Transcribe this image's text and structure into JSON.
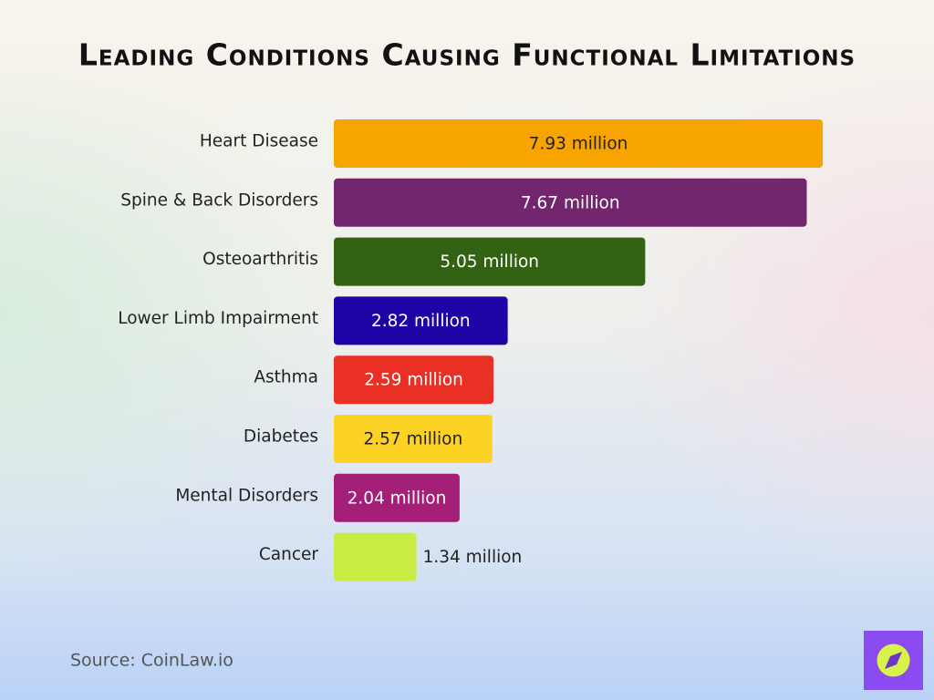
{
  "chart_data": {
    "type": "bar",
    "orientation": "horizontal",
    "title": "Leading Conditions Causing Functional Limitations",
    "categories": [
      "Heart Disease",
      "Spine & Back Disorders",
      "Osteoarthritis",
      "Lower Limb Impairment",
      "Asthma",
      "Diabetes",
      "Mental Disorders",
      "Cancer"
    ],
    "values": [
      7.93,
      7.67,
      5.05,
      2.82,
      2.59,
      2.57,
      2.04,
      1.34
    ],
    "value_labels": [
      "7.93 million",
      "7.67 million",
      "5.05 million",
      "2.82 million",
      "2.59 million",
      "2.57 million",
      "2.04 million",
      "1.34 million"
    ],
    "colors": [
      "#f8a400",
      "#71266e",
      "#336312",
      "#1d04a6",
      "#ea2f24",
      "#fcd224",
      "#a31f78",
      "#c8ec44"
    ],
    "source": "Source: CoinLaw.io"
  }
}
